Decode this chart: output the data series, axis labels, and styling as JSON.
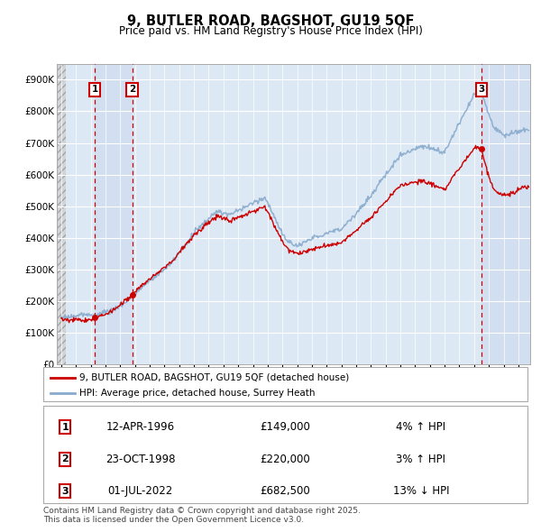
{
  "title": "9, BUTLER ROAD, BAGSHOT, GU19 5QF",
  "subtitle": "Price paid vs. HM Land Registry's House Price Index (HPI)",
  "ylim": [
    0,
    950000
  ],
  "yticks": [
    0,
    100000,
    200000,
    300000,
    400000,
    500000,
    600000,
    700000,
    800000,
    900000
  ],
  "ytick_labels": [
    "£0",
    "£100K",
    "£200K",
    "£300K",
    "£400K",
    "£500K",
    "£600K",
    "£700K",
    "£800K",
    "£900K"
  ],
  "xmin": 1993.7,
  "xmax": 2025.8,
  "transactions": [
    {
      "date": "12-APR-1996",
      "year": 1996.28,
      "price": 149000,
      "label": "1",
      "hpi_pct": "4% ↑ HPI"
    },
    {
      "date": "23-OCT-1998",
      "year": 1998.81,
      "price": 220000,
      "label": "2",
      "hpi_pct": "3% ↑ HPI"
    },
    {
      "date": "01-JUL-2022",
      "year": 2022.5,
      "price": 682500,
      "label": "3",
      "hpi_pct": "13% ↓ HPI"
    }
  ],
  "line_color_price": "#cc0000",
  "line_color_hpi": "#88aacc",
  "bg_color": "#dde8f5",
  "legend_price_label": "9, BUTLER ROAD, BAGSHOT, GU19 5QF (detached house)",
  "legend_hpi_label": "HPI: Average price, detached house, Surrey Heath",
  "copyright_text": "Contains HM Land Registry data © Crown copyright and database right 2025.\nThis data is licensed under the Open Government Licence v3.0.",
  "transaction_box_color": "#cc0000",
  "shade_color": "#ccdaee",
  "hatch_bg": "#e8e8e8"
}
